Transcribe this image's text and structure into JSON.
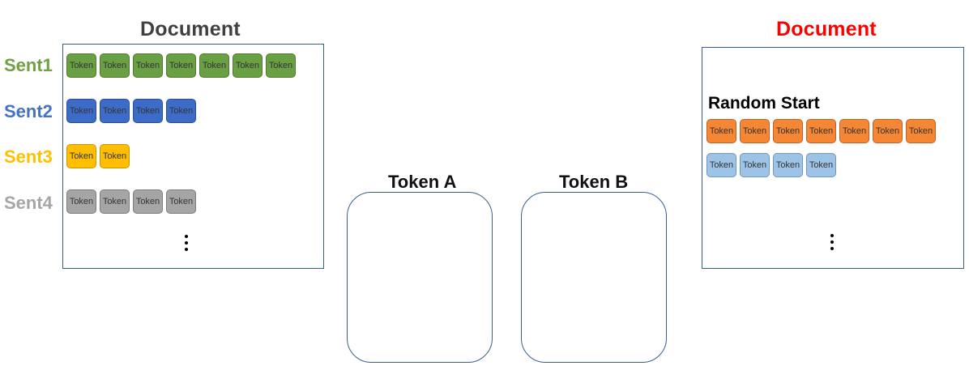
{
  "left_panel": {
    "title": "Document",
    "sentences": [
      {
        "label": "Sent1",
        "color": "#70a043",
        "token_bg": "#6aa044",
        "token_border": "#4f7a30",
        "tokens": [
          "Token",
          "Token",
          "Token",
          "Token",
          "Token",
          "Token",
          "Token"
        ]
      },
      {
        "label": "Sent2",
        "color": "#4472c4",
        "token_bg": "#3d6cc8",
        "token_border": "#2a4f96",
        "tokens": [
          "Token",
          "Token",
          "Token",
          "Token"
        ]
      },
      {
        "label": "Sent3",
        "color": "#ffc000",
        "token_bg": "#ffbe00",
        "token_border": "#c99600",
        "tokens": [
          "Token",
          "Token"
        ]
      },
      {
        "label": "Sent4",
        "color": "#a6a6a6",
        "token_bg": "#a5a5a5",
        "token_border": "#7d7d7d",
        "tokens": [
          "Token",
          "Token",
          "Token",
          "Token"
        ]
      }
    ]
  },
  "token_a": {
    "label": "Token A"
  },
  "token_b": {
    "label": "Token B"
  },
  "right_panel": {
    "title": "Document",
    "title_color": "#ff0000",
    "random_start_label": "Random Start",
    "rows": [
      {
        "token_bg": "#f58634",
        "token_border": "#c0622a",
        "tokens": [
          "Token",
          "Token",
          "Token",
          "Token",
          "Token",
          "Token",
          "Token"
        ]
      },
      {
        "token_bg": "#9dc3e6",
        "token_border": "#6f96c0",
        "tokens": [
          "Token",
          "Token",
          "Token",
          "Token"
        ]
      }
    ]
  }
}
